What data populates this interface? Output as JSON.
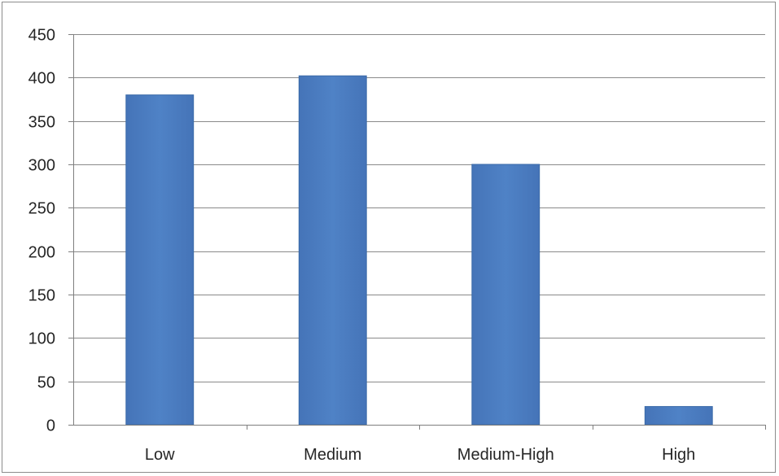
{
  "chart_data": {
    "type": "bar",
    "title": "",
    "xlabel": "",
    "ylabel": "",
    "categories": [
      "Low",
      "Medium",
      "Medium-High",
      "High"
    ],
    "values": [
      380,
      402,
      300,
      21
    ],
    "ylim": [
      0,
      450
    ],
    "yticks": [
      0,
      50,
      100,
      150,
      200,
      250,
      300,
      350,
      400,
      450
    ],
    "grid": true,
    "legend": "none",
    "bar_color": "#4a7cc0"
  }
}
